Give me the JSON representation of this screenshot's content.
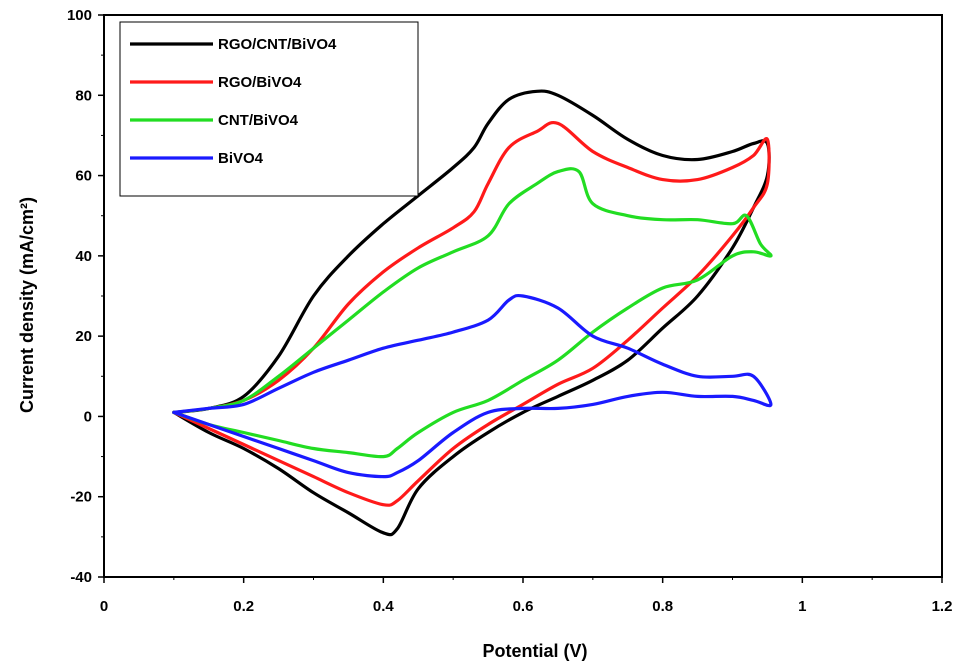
{
  "chart_data": {
    "type": "line",
    "title": "",
    "xlabel": "Potential  (V)",
    "ylabel": "Current density (mA/cm²)",
    "xlim": [
      0,
      1.2
    ],
    "ylim": [
      -40,
      100
    ],
    "xticks": [
      "0",
      "0.2",
      "0.4",
      "0.6",
      "0.8",
      "1",
      "1.2"
    ],
    "yticks": [
      "-40",
      "-20",
      "0",
      "20",
      "40",
      "60",
      "80",
      "100"
    ],
    "grid": false,
    "legend_position": "top-left",
    "series": [
      {
        "name": "RGO/CNT/BiVO4",
        "color": "#000000",
        "points": [
          [
            0.1,
            1
          ],
          [
            0.15,
            2
          ],
          [
            0.2,
            5
          ],
          [
            0.25,
            15
          ],
          [
            0.3,
            30
          ],
          [
            0.35,
            40
          ],
          [
            0.4,
            48
          ],
          [
            0.45,
            55
          ],
          [
            0.5,
            62
          ],
          [
            0.53,
            67
          ],
          [
            0.55,
            73
          ],
          [
            0.58,
            79
          ],
          [
            0.62,
            81
          ],
          [
            0.65,
            80
          ],
          [
            0.7,
            75
          ],
          [
            0.75,
            69
          ],
          [
            0.8,
            65
          ],
          [
            0.85,
            64
          ],
          [
            0.9,
            66
          ],
          [
            0.93,
            68
          ],
          [
            0.95,
            68
          ],
          [
            0.95,
            60
          ],
          [
            0.93,
            52
          ],
          [
            0.9,
            42
          ],
          [
            0.85,
            30
          ],
          [
            0.8,
            22
          ],
          [
            0.75,
            14
          ],
          [
            0.7,
            9
          ],
          [
            0.65,
            5
          ],
          [
            0.6,
            1
          ],
          [
            0.55,
            -4
          ],
          [
            0.5,
            -10
          ],
          [
            0.45,
            -18
          ],
          [
            0.42,
            -28
          ],
          [
            0.4,
            -29
          ],
          [
            0.35,
            -24
          ],
          [
            0.3,
            -19
          ],
          [
            0.25,
            -13
          ],
          [
            0.2,
            -8
          ],
          [
            0.15,
            -4
          ],
          [
            0.1,
            1
          ]
        ]
      },
      {
        "name": "RGO/BiVO4",
        "color": "#ff1a1a",
        "points": [
          [
            0.1,
            1
          ],
          [
            0.15,
            2
          ],
          [
            0.2,
            4
          ],
          [
            0.25,
            9
          ],
          [
            0.3,
            17
          ],
          [
            0.35,
            28
          ],
          [
            0.4,
            36
          ],
          [
            0.45,
            42
          ],
          [
            0.5,
            47
          ],
          [
            0.53,
            51
          ],
          [
            0.55,
            58
          ],
          [
            0.58,
            67
          ],
          [
            0.62,
            71
          ],
          [
            0.65,
            73
          ],
          [
            0.7,
            66
          ],
          [
            0.75,
            62
          ],
          [
            0.8,
            59
          ],
          [
            0.85,
            59
          ],
          [
            0.9,
            62
          ],
          [
            0.93,
            65
          ],
          [
            0.95,
            69
          ],
          [
            0.95,
            58
          ],
          [
            0.93,
            52
          ],
          [
            0.9,
            45
          ],
          [
            0.85,
            35
          ],
          [
            0.8,
            27
          ],
          [
            0.75,
            19
          ],
          [
            0.7,
            12
          ],
          [
            0.65,
            8
          ],
          [
            0.6,
            3
          ],
          [
            0.55,
            -2
          ],
          [
            0.5,
            -8
          ],
          [
            0.45,
            -16
          ],
          [
            0.42,
            -21
          ],
          [
            0.4,
            -22
          ],
          [
            0.35,
            -19
          ],
          [
            0.3,
            -15
          ],
          [
            0.25,
            -11
          ],
          [
            0.2,
            -7
          ],
          [
            0.15,
            -3
          ],
          [
            0.1,
            1
          ]
        ]
      },
      {
        "name": "CNT/BiVO4",
        "color": "#22dd22",
        "points": [
          [
            0.1,
            1
          ],
          [
            0.15,
            2
          ],
          [
            0.2,
            4
          ],
          [
            0.25,
            10
          ],
          [
            0.3,
            17
          ],
          [
            0.35,
            24
          ],
          [
            0.4,
            31
          ],
          [
            0.45,
            37
          ],
          [
            0.5,
            41
          ],
          [
            0.55,
            45
          ],
          [
            0.58,
            53
          ],
          [
            0.62,
            58
          ],
          [
            0.65,
            61
          ],
          [
            0.68,
            61
          ],
          [
            0.7,
            53
          ],
          [
            0.75,
            50
          ],
          [
            0.8,
            49
          ],
          [
            0.85,
            49
          ],
          [
            0.9,
            48
          ],
          [
            0.92,
            50
          ],
          [
            0.94,
            43
          ],
          [
            0.955,
            40
          ],
          [
            0.93,
            41
          ],
          [
            0.9,
            40
          ],
          [
            0.85,
            34
          ],
          [
            0.8,
            32
          ],
          [
            0.75,
            27
          ],
          [
            0.7,
            21
          ],
          [
            0.65,
            14
          ],
          [
            0.6,
            9
          ],
          [
            0.55,
            4
          ],
          [
            0.5,
            1
          ],
          [
            0.45,
            -4
          ],
          [
            0.42,
            -8
          ],
          [
            0.4,
            -10
          ],
          [
            0.35,
            -9
          ],
          [
            0.3,
            -8
          ],
          [
            0.25,
            -6
          ],
          [
            0.2,
            -4
          ],
          [
            0.15,
            -2
          ],
          [
            0.1,
            1
          ]
        ]
      },
      {
        "name": "BiVO4",
        "color": "#1a1aff",
        "points": [
          [
            0.1,
            1
          ],
          [
            0.15,
            2
          ],
          [
            0.2,
            3
          ],
          [
            0.25,
            7
          ],
          [
            0.3,
            11
          ],
          [
            0.35,
            14
          ],
          [
            0.4,
            17
          ],
          [
            0.45,
            19
          ],
          [
            0.5,
            21
          ],
          [
            0.55,
            24
          ],
          [
            0.58,
            29
          ],
          [
            0.6,
            30
          ],
          [
            0.65,
            27
          ],
          [
            0.7,
            20
          ],
          [
            0.75,
            17
          ],
          [
            0.8,
            13
          ],
          [
            0.85,
            10
          ],
          [
            0.9,
            10
          ],
          [
            0.93,
            10
          ],
          [
            0.955,
            3
          ],
          [
            0.93,
            4
          ],
          [
            0.9,
            5
          ],
          [
            0.85,
            5
          ],
          [
            0.8,
            6
          ],
          [
            0.75,
            5
          ],
          [
            0.7,
            3
          ],
          [
            0.65,
            2
          ],
          [
            0.6,
            2
          ],
          [
            0.55,
            1
          ],
          [
            0.5,
            -4
          ],
          [
            0.45,
            -11
          ],
          [
            0.42,
            -14
          ],
          [
            0.4,
            -15
          ],
          [
            0.35,
            -14
          ],
          [
            0.3,
            -11
          ],
          [
            0.25,
            -8
          ],
          [
            0.2,
            -5
          ],
          [
            0.15,
            -2
          ],
          [
            0.1,
            1
          ]
        ]
      }
    ]
  }
}
